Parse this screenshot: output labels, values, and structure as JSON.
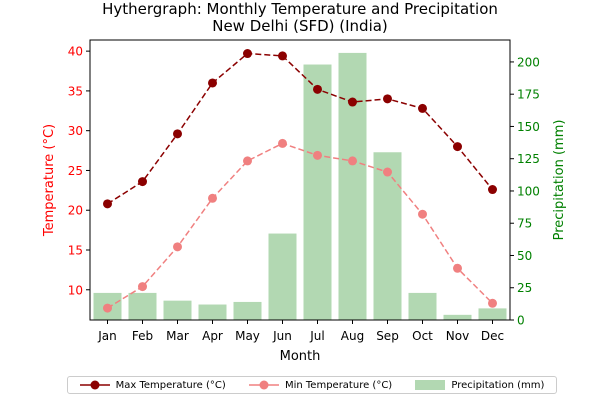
{
  "chart_data": {
    "type": "bar+line",
    "title": "Hythergraph: Monthly Temperature and Precipitation",
    "subtitle": "New Delhi (SFD) (India)",
    "xlabel": "Month",
    "ylabel_left": "Temperature (°C)",
    "ylabel_right": "Precipitation (mm)",
    "categories": [
      "Jan",
      "Feb",
      "Mar",
      "Apr",
      "May",
      "Jun",
      "Jul",
      "Aug",
      "Sep",
      "Oct",
      "Nov",
      "Dec"
    ],
    "ylim_left": [
      6.2,
      41.4
    ],
    "ylim_right": [
      0,
      217
    ],
    "yticks_left": [
      10,
      15,
      20,
      25,
      30,
      35,
      40
    ],
    "yticks_right": [
      0,
      25,
      50,
      75,
      100,
      125,
      150,
      175,
      200
    ],
    "legend_position": "bottom",
    "grid": false,
    "series": [
      {
        "name": "Max Temperature (°C)",
        "kind": "line",
        "axis": "left",
        "color": "#8b0000",
        "values": [
          20.8,
          23.6,
          29.6,
          36.0,
          39.7,
          39.4,
          35.2,
          33.6,
          34.0,
          32.8,
          28.0,
          22.6
        ]
      },
      {
        "name": "Min Temperature (°C)",
        "kind": "line",
        "axis": "left",
        "color": "#f08080",
        "values": [
          7.7,
          10.4,
          15.4,
          21.5,
          26.2,
          28.4,
          26.9,
          26.2,
          24.8,
          19.5,
          12.7,
          8.3
        ]
      },
      {
        "name": "Precipitation (mm)",
        "kind": "bar",
        "axis": "right",
        "color": "#b2d8b2",
        "values": [
          21,
          21,
          15,
          12,
          14,
          67,
          198,
          207,
          130,
          21,
          4,
          9
        ]
      }
    ]
  },
  "colors": {
    "left_axis": "#ff0000",
    "right_axis": "#008000"
  }
}
